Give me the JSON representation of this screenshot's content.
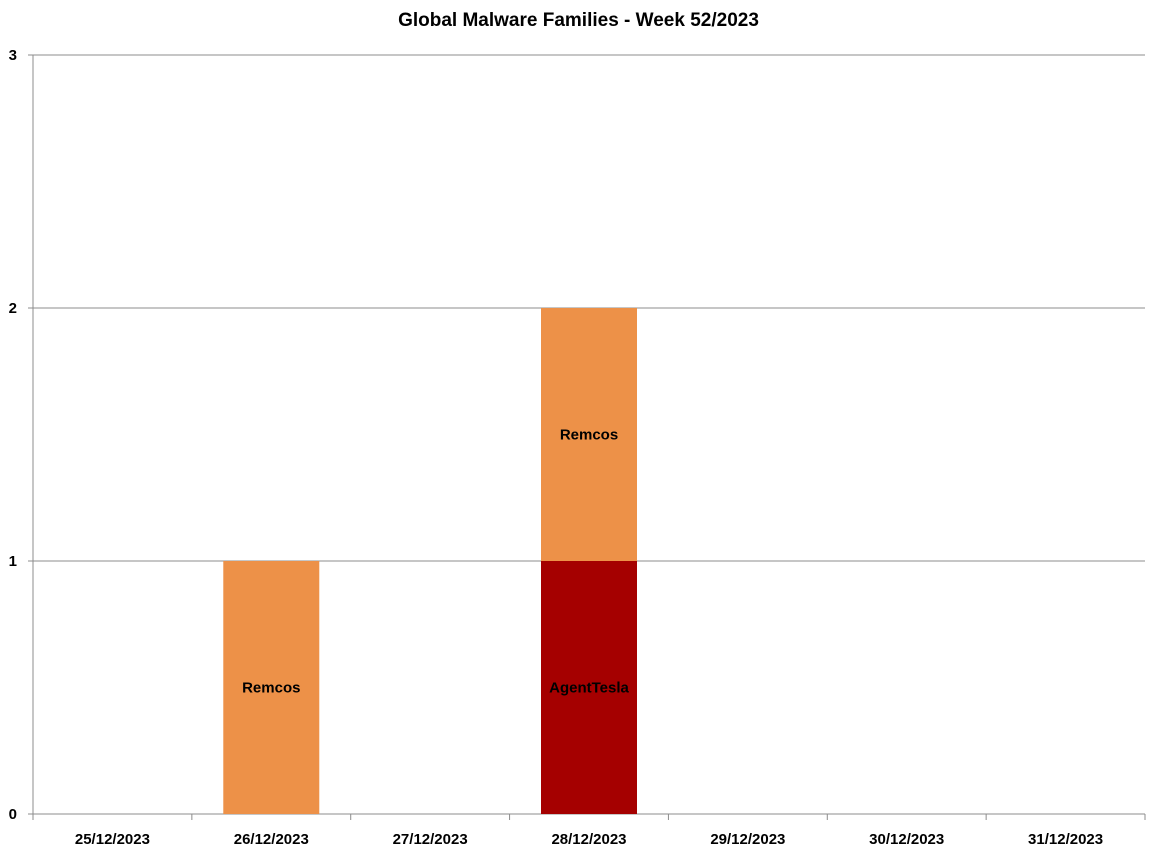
{
  "chart_data": {
    "type": "bar",
    "stacked": true,
    "title": "Global Malware Families - Week 52/2023",
    "xlabel": "",
    "ylabel": "",
    "ylim": [
      0,
      3
    ],
    "yticks": [
      "0",
      "1",
      "2",
      "3"
    ],
    "grid": true,
    "legend": "none",
    "categories": [
      "25/12/2023",
      "26/12/2023",
      "27/12/2023",
      "28/12/2023",
      "29/12/2023",
      "30/12/2023",
      "31/12/2023"
    ],
    "series": [
      {
        "name": "AgentTesla",
        "color": "#a50000",
        "values": [
          0,
          0,
          0,
          1,
          0,
          0,
          0
        ]
      },
      {
        "name": "Remcos",
        "color": "#ed9148",
        "values": [
          0,
          1,
          0,
          1,
          0,
          0,
          0
        ]
      }
    ]
  }
}
